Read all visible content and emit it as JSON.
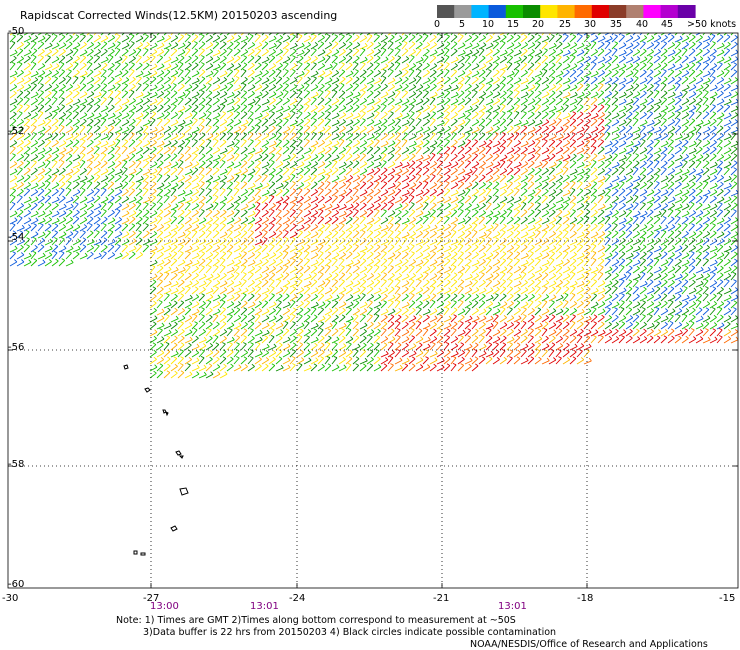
{
  "title": "Rapidscat Corrected Winds(12.5KM) 20150203 ascending",
  "colorbar": {
    "labels": [
      "0",
      "5",
      "10",
      "15",
      "20",
      "25",
      "30",
      "35",
      "40",
      "45",
      ">50 knots"
    ],
    "colors": [
      "#555555",
      "#9a9a9a",
      "#00b4ff",
      "#0a5adc",
      "#17c000",
      "#0a8c00",
      "#ffe600",
      "#ffb400",
      "#ff6a00",
      "#e00000",
      "#8b3c28",
      "#b08070",
      "#ff00ff",
      "#b400d0",
      "#6a00a8"
    ]
  },
  "lat_labels": [
    "-50",
    "-52",
    "-54",
    "-56",
    "-58",
    "-60"
  ],
  "lon_labels": [
    "-30",
    "-27",
    "-24",
    "-21",
    "-18",
    "-15"
  ],
  "times": [
    "13:00",
    "13:01",
    "13:01"
  ],
  "notes": {
    "line1": "Note: 1) Times are GMT 2)Times along bottom correspond to measurement at ~50S",
    "line2": "3)Data buffer is 22 hrs from 20150203 4) Black circles indicate possible contamination",
    "line3": "NOAA/NESDIS/Office of Research and Applications"
  },
  "icons": {
    "islands": "island-outline-icon"
  }
}
